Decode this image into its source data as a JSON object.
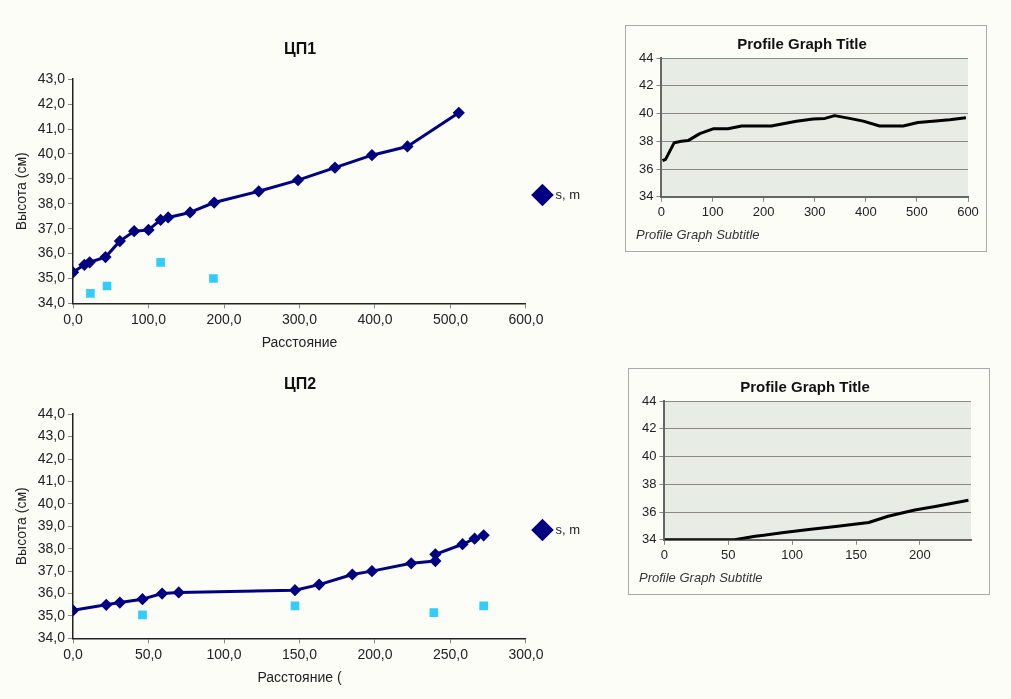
{
  "chart_data": [
    {
      "type": "line",
      "title": "ЦП1",
      "xlabel": "Расстояние",
      "ylabel": "Высота (см)",
      "legend": "right",
      "grid": false,
      "xlim": [
        0,
        600
      ],
      "xticks": [
        {
          "value": 0,
          "label": "0,0"
        },
        {
          "value": 100,
          "label": "100,0"
        },
        {
          "value": 200,
          "label": "200,0"
        },
        {
          "value": 300,
          "label": "300,0"
        },
        {
          "value": 400,
          "label": "400,0"
        },
        {
          "value": 500,
          "label": "500,0"
        },
        {
          "value": 600,
          "label": "600,0"
        }
      ],
      "ylim": [
        34,
        43
      ],
      "yticks": [
        {
          "value": 34,
          "label": "34,0"
        },
        {
          "value": 35,
          "label": "35,0"
        },
        {
          "value": 36,
          "label": "36,0"
        },
        {
          "value": 37,
          "label": "37,0"
        },
        {
          "value": 38,
          "label": "38,0"
        },
        {
          "value": 39,
          "label": "39,0"
        },
        {
          "value": 40,
          "label": "40,0"
        },
        {
          "value": 41,
          "label": "41,0"
        },
        {
          "value": 42,
          "label": "42,0"
        },
        {
          "value": 43,
          "label": "43,0"
        }
      ],
      "series": [
        {
          "name": "s, m",
          "color": "#000080",
          "marker": "diamond",
          "x": [
            0,
            15,
            22,
            43,
            62,
            81,
            100,
            116,
            126,
            155,
            187,
            246,
            298,
            347,
            396,
            443,
            511
          ],
          "values": [
            35.25,
            35.55,
            35.65,
            35.86,
            36.5,
            36.9,
            36.95,
            37.35,
            37.45,
            37.65,
            38.05,
            38.5,
            38.95,
            39.45,
            39.95,
            40.3,
            41.65
          ]
        },
        {
          "type": "scatter",
          "color": "#33ccff",
          "marker": "square",
          "x": [
            23,
            45,
            116,
            186
          ],
          "values": [
            34.4,
            34.7,
            35.65,
            35.0
          ]
        }
      ]
    },
    {
      "type": "line",
      "title": "Profile Graph Title",
      "subtitle": "Profile Graph Subtitle",
      "grid": "y",
      "legend": false,
      "xlim": [
        0,
        600
      ],
      "xticks": [
        0,
        100,
        200,
        300,
        400,
        500,
        600
      ],
      "ylim": [
        34,
        44
      ],
      "yticks": [
        34,
        36,
        38,
        40,
        42,
        44
      ],
      "series": [
        {
          "color": "#000000",
          "marker": "none",
          "x": [
            2,
            8,
            25,
            39,
            52,
            75,
            101,
            130,
            157,
            215,
            264,
            297,
            320,
            339,
            368,
            395,
            427,
            473,
            502,
            531,
            564,
            596
          ],
          "values": [
            36.6,
            36.7,
            37.9,
            38.0,
            38.05,
            38.55,
            38.9,
            38.9,
            39.1,
            39.1,
            39.45,
            39.6,
            39.65,
            39.85,
            39.65,
            39.45,
            39.1,
            39.1,
            39.35,
            39.45,
            39.55,
            39.7
          ]
        }
      ]
    },
    {
      "type": "line",
      "title": "ЦП2",
      "xlabel": "Расстояние (",
      "ylabel": "Высота (см)",
      "legend": "right",
      "grid": false,
      "xlim": [
        0,
        300
      ],
      "xticks": [
        {
          "value": 0,
          "label": "0,0"
        },
        {
          "value": 50,
          "label": "50,0"
        },
        {
          "value": 100,
          "label": "100,0"
        },
        {
          "value": 150,
          "label": "150,0"
        },
        {
          "value": 200,
          "label": "200,0"
        },
        {
          "value": 250,
          "label": "250,0"
        },
        {
          "value": 300,
          "label": "300,0"
        }
      ],
      "ylim": [
        34,
        44
      ],
      "yticks": [
        {
          "value": 34,
          "label": "34,0"
        },
        {
          "value": 35,
          "label": "35,0"
        },
        {
          "value": 36,
          "label": "36,0"
        },
        {
          "value": 37,
          "label": "37,0"
        },
        {
          "value": 38,
          "label": "38,0"
        },
        {
          "value": 39,
          "label": "39,0"
        },
        {
          "value": 40,
          "label": "40,0"
        },
        {
          "value": 41,
          "label": "41,0"
        },
        {
          "value": 42,
          "label": "42,0"
        },
        {
          "value": 43,
          "label": "43,0"
        },
        {
          "value": 44,
          "label": "44,0"
        }
      ],
      "series": [
        {
          "name": "s, m",
          "color": "#000080",
          "marker": "diamond",
          "x": [
            0,
            22,
            31,
            46,
            59,
            70,
            147,
            163,
            185,
            198,
            224,
            240,
            240,
            258,
            266,
            272
          ],
          "values": [
            35.25,
            35.5,
            35.6,
            35.75,
            36.0,
            36.05,
            36.15,
            36.4,
            36.85,
            37.0,
            37.35,
            37.45,
            37.75,
            38.2,
            38.45,
            38.6
          ]
        },
        {
          "type": "scatter",
          "color": "#33ccff",
          "marker": "square",
          "x": [
            46,
            147,
            239,
            272
          ],
          "values": [
            35.05,
            35.45,
            35.15,
            35.45
          ]
        }
      ]
    },
    {
      "type": "line",
      "title": "Profile Graph Title",
      "subtitle": "Profile Graph Subtitle",
      "grid": "y",
      "legend": false,
      "xlim": [
        0,
        240
      ],
      "xticks": [
        0,
        50,
        100,
        150,
        200
      ],
      "ylim": [
        34,
        44
      ],
      "yticks": [
        34,
        36,
        38,
        40,
        42,
        44
      ],
      "series": [
        {
          "color": "#000000",
          "marker": "none",
          "x": [
            0,
            55,
            71,
            92,
            113,
            134,
            160,
            175,
            196,
            212,
            238
          ],
          "values": [
            34.0,
            34.0,
            34.25,
            34.5,
            34.75,
            34.95,
            35.25,
            35.7,
            36.15,
            36.4,
            36.85
          ]
        }
      ]
    }
  ]
}
